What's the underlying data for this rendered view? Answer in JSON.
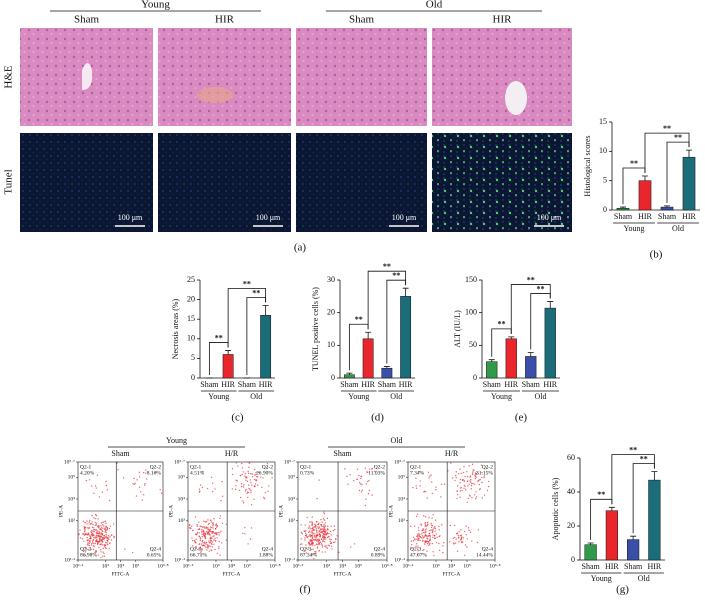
{
  "panel_a": {
    "label": "(a)",
    "groups": [
      "Young",
      "Old"
    ],
    "columns": [
      "Sham",
      "HIR",
      "Sham",
      "HIR"
    ],
    "rows": [
      "H&E",
      "Tunel"
    ],
    "scale_bar": "100 μm"
  },
  "chart_data": [
    {
      "type": "bar",
      "label": "(b)",
      "ylabel": "Histological scores",
      "categories": [
        "Sham",
        "HIR",
        "Sham",
        "HIR"
      ],
      "groups": [
        "Young",
        "Old"
      ],
      "values": [
        0.3,
        5,
        0.5,
        9
      ],
      "errors": [
        0.2,
        0.8,
        0.2,
        1.2
      ],
      "colors": [
        "#2e9a4a",
        "#e8262b",
        "#3a4fa8",
        "#1b6d7a"
      ],
      "ylim": [
        0,
        15
      ],
      "yticks": [
        0,
        5,
        10,
        15
      ],
      "annotations": [
        "**",
        "**",
        "**"
      ]
    },
    {
      "type": "bar",
      "label": "(c)",
      "ylabel": "Necrosis areas (%)",
      "categories": [
        "Sham",
        "HIR",
        "Sham",
        "HIR"
      ],
      "groups": [
        "Young",
        "Old"
      ],
      "values": [
        0,
        6,
        0,
        16
      ],
      "errors": [
        0,
        1,
        0,
        2.5
      ],
      "colors": [
        "#2e9a4a",
        "#e8262b",
        "#3a4fa8",
        "#1b6d7a"
      ],
      "ylim": [
        0,
        25
      ],
      "yticks": [
        0,
        5,
        10,
        15,
        20,
        25
      ],
      "annotations": [
        "**",
        "**",
        "**"
      ]
    },
    {
      "type": "bar",
      "label": "(d)",
      "ylabel": "TUNEL positive cells (%)",
      "categories": [
        "Sham",
        "HIR",
        "Sham",
        "HIR"
      ],
      "groups": [
        "Young",
        "Old"
      ],
      "values": [
        1,
        12,
        3,
        25
      ],
      "errors": [
        0.5,
        2,
        0.5,
        2.5
      ],
      "colors": [
        "#2e9a4a",
        "#e8262b",
        "#3a4fa8",
        "#1b6d7a"
      ],
      "ylim": [
        0,
        30
      ],
      "yticks": [
        0,
        10,
        20,
        30
      ],
      "annotations": [
        "**",
        "**",
        "**"
      ]
    },
    {
      "type": "bar",
      "label": "(e)",
      "ylabel": "ALT (IU/L)",
      "categories": [
        "Sham",
        "HIR",
        "Sham",
        "HIR"
      ],
      "groups": [
        "Young",
        "Old"
      ],
      "values": [
        25,
        60,
        33,
        107
      ],
      "errors": [
        3,
        3,
        6,
        10
      ],
      "colors": [
        "#2e9a4a",
        "#e8262b",
        "#3a4fa8",
        "#1b6d7a"
      ],
      "ylim": [
        0,
        150
      ],
      "yticks": [
        0,
        50,
        100,
        150
      ],
      "annotations": [
        "**",
        "**",
        "**"
      ]
    },
    {
      "type": "flow",
      "label": "(f)",
      "groups": [
        "Young",
        "Old"
      ],
      "conditions": [
        "Sham",
        "H/R",
        "Sham",
        "H/R"
      ],
      "xlabel": "FITC-A",
      "ylabel": "PE-A",
      "quadrants": [
        "Q2-1",
        "Q2-2",
        "Q2-3",
        "Q2-4"
      ],
      "color": "#e8333a",
      "xlim": [
        1.2,
        6.8
      ],
      "ylim": [
        1.2,
        5.7
      ],
      "xticks": [
        {
          "value": 1.2,
          "label": "10¹·²"
        },
        {
          "value": 3,
          "label": "10³"
        },
        {
          "value": 4,
          "label": "10⁴"
        },
        {
          "value": 5,
          "label": "10⁵"
        },
        {
          "value": 6.8,
          "label": "10⁶·⁸"
        }
      ],
      "yticks": [
        {
          "value": 1.2,
          "label": "10¹·²"
        },
        {
          "value": 3,
          "label": "10³"
        },
        {
          "value": 4,
          "label": "10⁴"
        },
        {
          "value": 5,
          "label": "10⁵"
        },
        {
          "value": 5.7,
          "label": "10⁵·⁷"
        }
      ],
      "panels": [
        {
          "values": [
            4.2,
            8.16,
            86.98,
            0.65
          ],
          "value_labels": [
            "4.20%",
            "8.16%",
            "86.98%",
            "0.65%"
          ]
        },
        {
          "values": [
            4.51,
            26.9,
            66.71,
            1.88
          ],
          "value_labels": [
            "4.51%",
            "26.90%",
            "66.71%",
            "1.88%"
          ]
        },
        {
          "values": [
            0.73,
            11.03,
            87.34,
            0.89
          ],
          "value_labels": [
            "0.73%",
            "11.03%",
            "87.34%",
            "0.89%"
          ]
        },
        {
          "values": [
            7.34,
            31.15,
            47.07,
            14.44
          ],
          "value_labels": [
            "7.34%",
            "31.15%",
            "47.07%",
            "14.44%"
          ]
        }
      ]
    },
    {
      "type": "bar",
      "label": "(g)",
      "ylabel": "Apoptotic cells (%)",
      "categories": [
        "Sham",
        "HIR",
        "Sham",
        "HIR"
      ],
      "groups": [
        "Young",
        "Old"
      ],
      "values": [
        9,
        29,
        12,
        47
      ],
      "errors": [
        1,
        2,
        2,
        5
      ],
      "colors": [
        "#2e9a4a",
        "#e8262b",
        "#3a4fa8",
        "#1b6d7a"
      ],
      "ylim": [
        0,
        60
      ],
      "yticks": [
        0,
        20,
        40,
        60
      ],
      "annotations": [
        "**",
        "**",
        "**"
      ]
    }
  ]
}
